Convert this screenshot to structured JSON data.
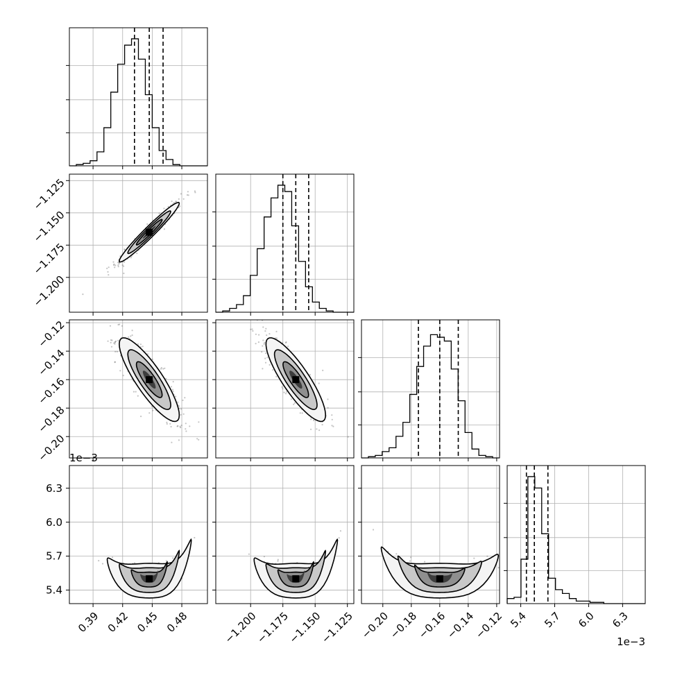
{
  "chart_data": {
    "type": "corner",
    "title": "",
    "parameters": [
      {
        "range": [
          0.366,
          0.506
        ],
        "ticks": [
          0.39,
          0.42,
          0.45,
          0.48
        ],
        "tick_labels": [
          "0.39",
          "0.42",
          "0.45",
          "0.48"
        ],
        "quantiles": [
          0.432,
          0.447,
          0.461
        ],
        "peak": 0.447,
        "sigma": 0.0145,
        "hist": [
          0,
          1,
          2,
          4,
          11,
          30,
          58,
          80,
          95,
          100,
          84,
          56,
          30,
          12,
          5,
          1,
          0,
          0,
          0,
          0
        ],
        "offset_label": ""
      },
      {
        "range": [
          -1.227,
          -1.12
        ],
        "ticks": [
          -1.2,
          -1.175,
          -1.15,
          -1.125
        ],
        "tick_labels": [
          "−1.200",
          "−1.175",
          "−1.150",
          "−1.125"
        ],
        "quantiles": [
          -1.175,
          -1.165,
          -1.155
        ],
        "peak": -1.165,
        "sigma": 0.011,
        "hist": [
          0,
          1,
          3,
          6,
          13,
          29,
          50,
          75,
          90,
          100,
          95,
          68,
          40,
          20,
          8,
          3,
          1,
          0,
          0,
          0
        ],
        "offset_label": ""
      },
      {
        "range": [
          -0.215,
          -0.118
        ],
        "ticks": [
          -0.2,
          -0.18,
          -0.16,
          -0.14,
          -0.12
        ],
        "tick_labels": [
          "−0.20",
          "−0.18",
          "−0.16",
          "−0.14",
          "−0.12"
        ],
        "quantiles": [
          -0.175,
          -0.16,
          -0.147
        ],
        "peak": -0.16,
        "sigma": 0.014,
        "hist": [
          0,
          1,
          2,
          5,
          8,
          17,
          28,
          50,
          72,
          88,
          97,
          95,
          92,
          70,
          45,
          20,
          7,
          2,
          1,
          0
        ],
        "offset_label": ""
      },
      {
        "range": [
          5.28,
          6.5
        ],
        "ticks": [
          5.4,
          5.7,
          6.0,
          6.3
        ],
        "tick_labels": [
          "5.4",
          "5.7",
          "6.0",
          "6.3"
        ],
        "quantiles": [
          5.45,
          5.52,
          5.64
        ],
        "peak": 5.5,
        "sigma": 0.09,
        "hist": [
          4,
          5,
          35,
          100,
          91,
          55,
          20,
          11,
          8,
          4,
          2,
          2,
          1,
          1,
          0,
          0,
          0,
          0,
          0,
          0
        ],
        "offset_label": "1e−3"
      }
    ],
    "correlations": [
      {
        "pair": [
          1,
          0
        ],
        "rho": 0.97
      },
      {
        "pair": [
          2,
          0
        ],
        "rho": -0.85
      },
      {
        "pair": [
          2,
          1
        ],
        "rho": -0.85
      },
      {
        "pair": [
          3,
          0
        ],
        "rho": 0.0
      },
      {
        "pair": [
          3,
          1
        ],
        "rho": 0.0
      },
      {
        "pair": [
          3,
          2
        ],
        "rho": 0.0
      }
    ],
    "quantiles_shown": [
      0.16,
      0.5,
      0.84
    ],
    "grid": true,
    "legend": "none",
    "xlabel": "",
    "ylabel": ""
  }
}
